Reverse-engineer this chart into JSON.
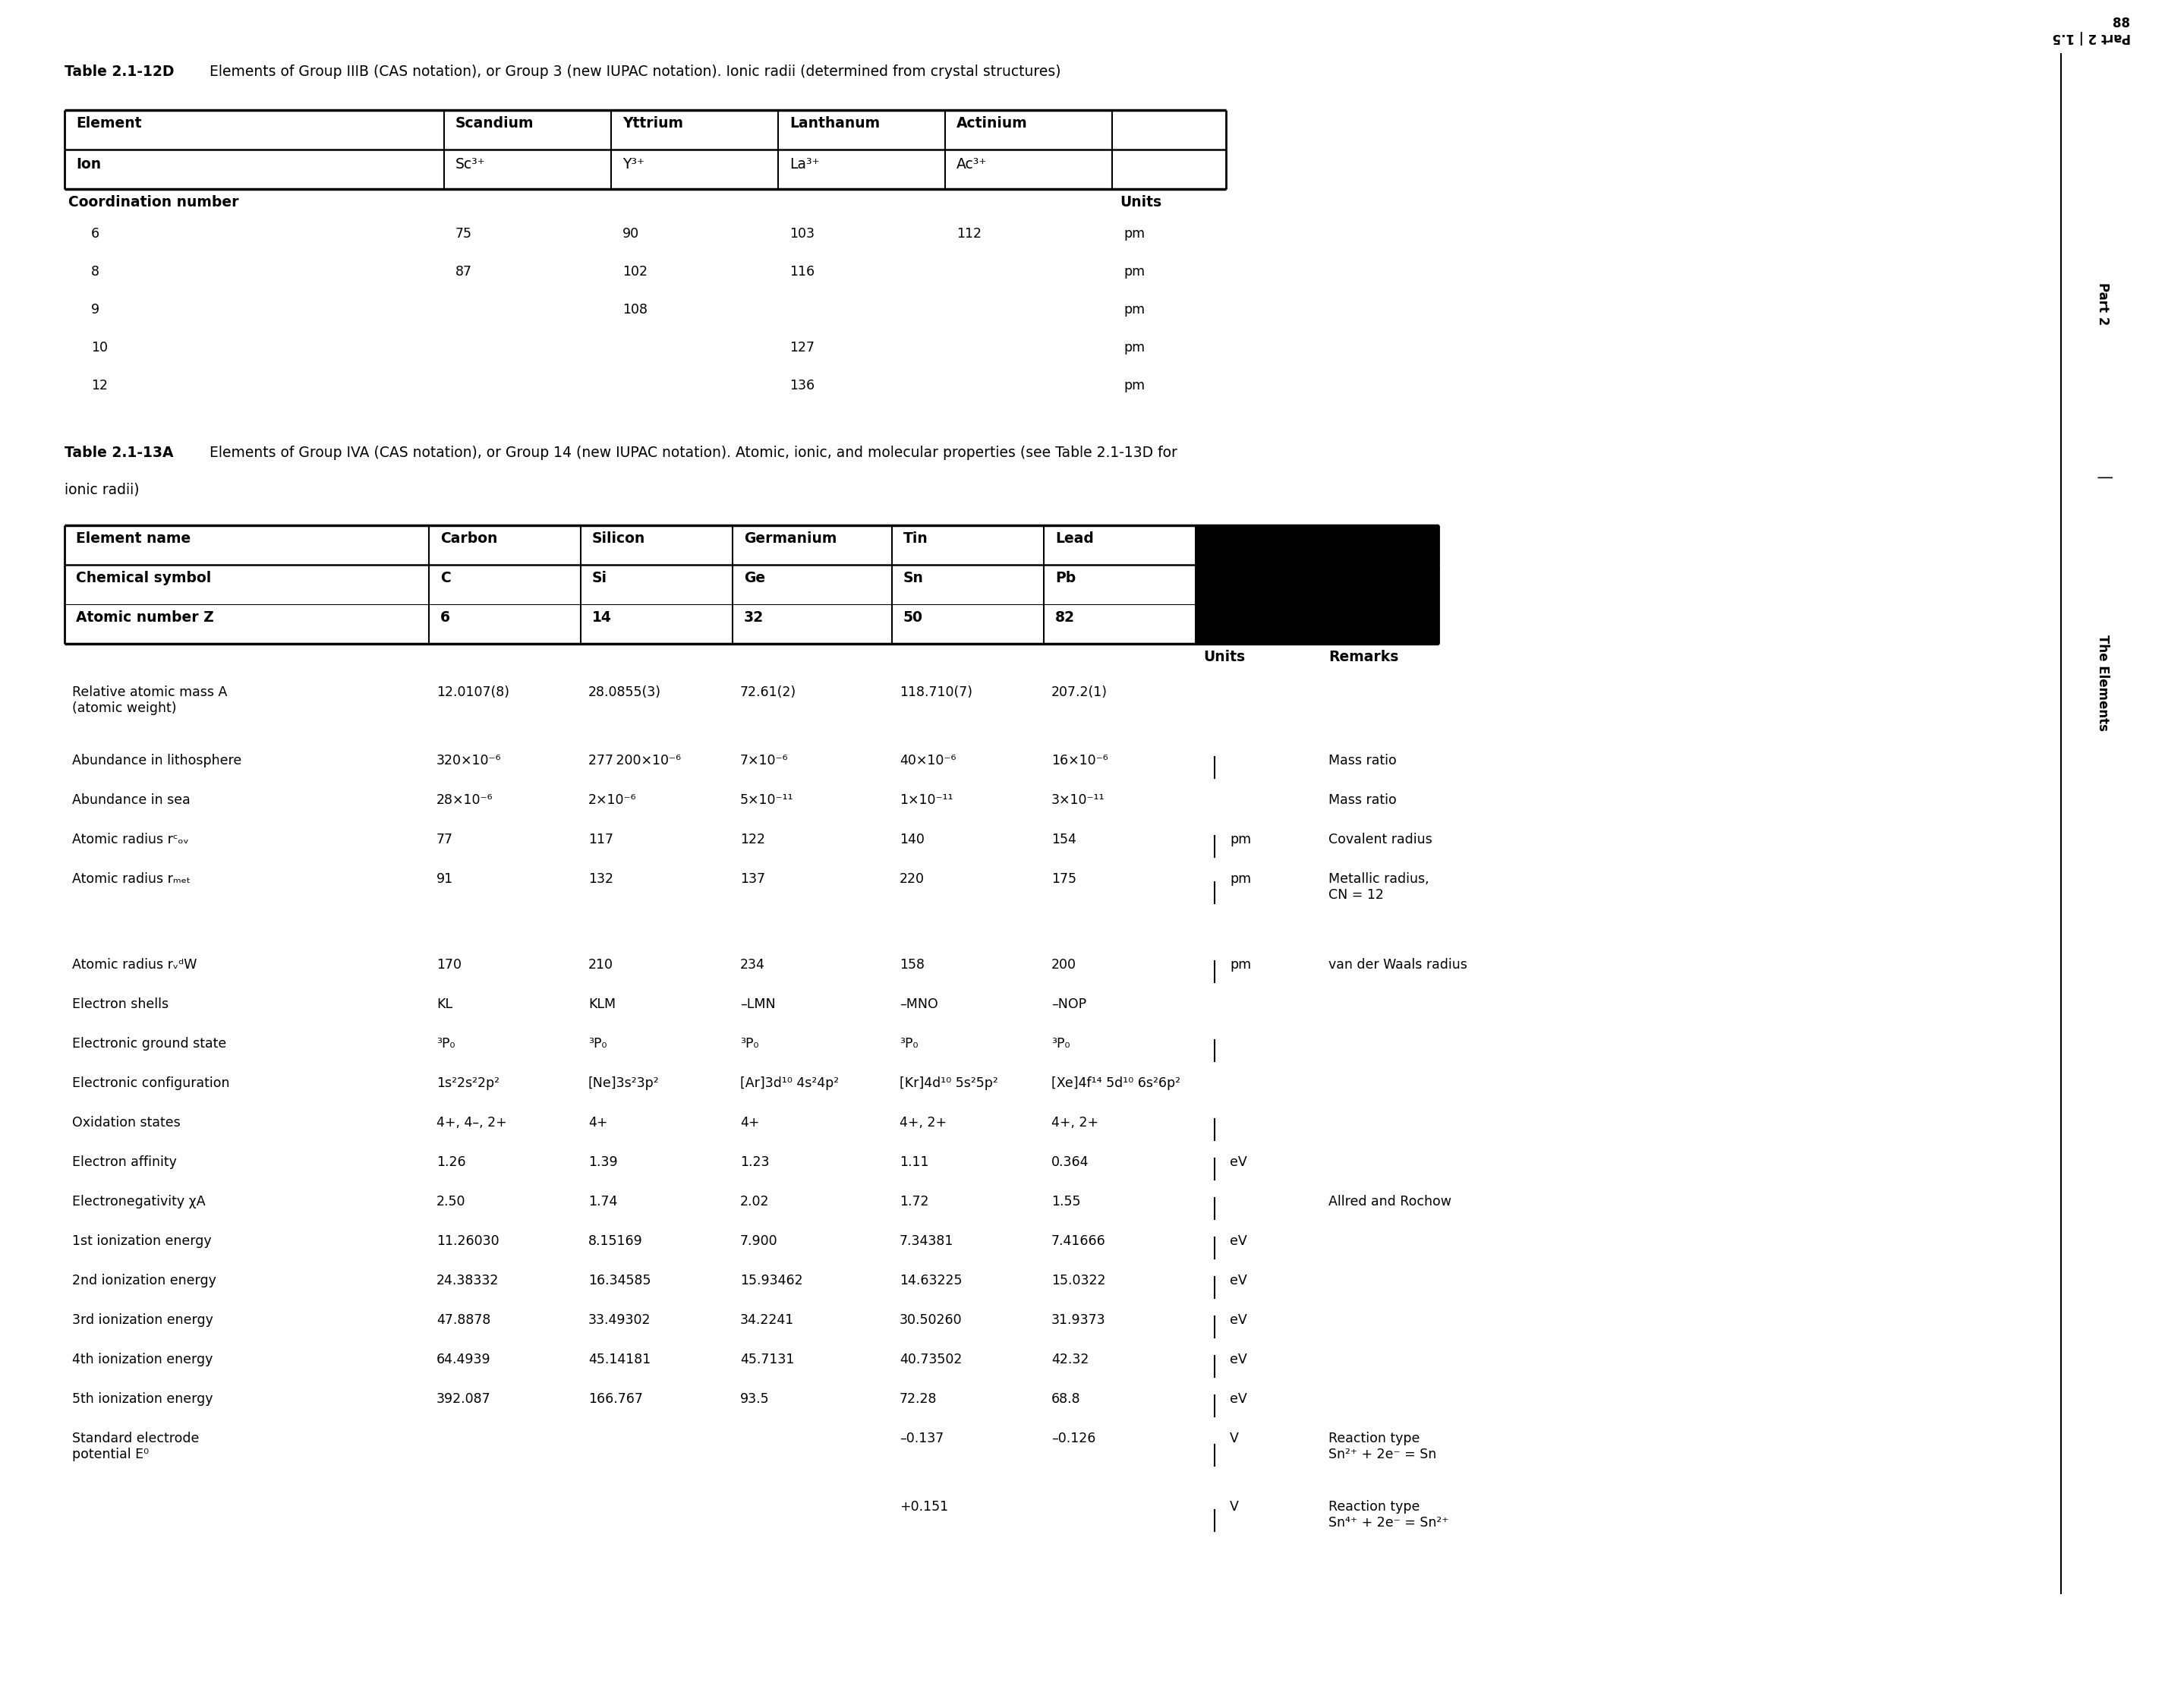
{
  "page_number": "88",
  "part_label": "Part 2 | 1.5",
  "side_label": "Part 2  |  The Elements",
  "table12d_title_bold": "Table 2.1-12D",
  "table12d_title_rest": " Elements of Group IIIB (CAS notation), or Group 3 (new IUPAC notation). Ionic radii (determined from crystal structures)",
  "table12d_headers": [
    "Element",
    "Scandium",
    "Yttrium",
    "Lanthanum",
    "Actinium",
    ""
  ],
  "table12d_ions": [
    "Ion",
    "Sc³⁺",
    "Y³⁺",
    "La³⁺",
    "Ac³⁺",
    ""
  ],
  "table12d_coord_label": "Coordination number",
  "table12d_units_label": "Units",
  "table12d_data": [
    [
      "6",
      "75",
      "90",
      "103",
      "112",
      "pm"
    ],
    [
      "8",
      "87",
      "102",
      "116",
      "",
      "pm"
    ],
    [
      "9",
      "",
      "108",
      "",
      "",
      "pm"
    ],
    [
      "10",
      "",
      "",
      "127",
      "",
      "pm"
    ],
    [
      "12",
      "",
      "",
      "136",
      "",
      "pm"
    ]
  ],
  "table13a_title_bold": "Table 2.1-13A",
  "table13a_title_line1": " Elements of Group IVA (CAS notation), or Group 14 (new IUPAC notation). Atomic, ionic, and molecular properties (see Table 2.1-13D for",
  "table13a_title_line2": "ionic radii)",
  "table13a_headers": [
    "Element name",
    "Carbon",
    "Silicon",
    "Germanium",
    "Tin",
    "Lead"
  ],
  "table13a_symbols": [
    "Chemical symbol",
    "C",
    "Si",
    "Ge",
    "Sn",
    "Pb"
  ],
  "table13a_atomicZ": [
    "Atomic number Z",
    "6",
    "14",
    "32",
    "50",
    "82"
  ],
  "table13a_rows": [
    {
      "prop": "Relative atomic mass A\n(atomic weight)",
      "vals": [
        "12.0107(8)",
        "28.0855(3)",
        "72.61(2)",
        "118.710(7)",
        "207.2(1)"
      ],
      "unit": "",
      "unit_bar": false,
      "remark": "",
      "rh": 0.9
    },
    {
      "prop": "Abundance in lithosphere",
      "vals": [
        "320×10⁻⁶",
        "277 200×10⁻⁶",
        "7×10⁻⁶",
        "40×10⁻⁶",
        "16×10⁻⁶"
      ],
      "unit": "",
      "unit_bar": true,
      "remark": "Mass ratio",
      "rh": 0.52
    },
    {
      "prop": "Abundance in sea",
      "vals": [
        "28×10⁻⁶",
        "2×10⁻⁶",
        "5×10⁻¹¹",
        "1×10⁻¹¹",
        "3×10⁻¹¹"
      ],
      "unit": "",
      "unit_bar": false,
      "remark": "Mass ratio",
      "rh": 0.52
    },
    {
      "prop": "Atomic radius rᶜₒᵥ",
      "vals": [
        "77",
        "117",
        "122",
        "140",
        "154"
      ],
      "unit": "pm",
      "unit_bar": true,
      "remark": "Covalent radius",
      "rh": 0.52
    },
    {
      "prop": "Atomic radius rₘₑₜ",
      "vals": [
        "91",
        "132",
        "137",
        "220",
        "175"
      ],
      "unit": "pm",
      "unit_bar": false,
      "remark": "Metallic radius,\nCN = 12",
      "rh": 0.78
    },
    {
      "prop": "",
      "vals": [
        "",
        "",
        "",
        "",
        ""
      ],
      "unit": "",
      "unit_bar": false,
      "remark": "",
      "rh": 0.35
    },
    {
      "prop": "Atomic radius rᵥᵈW",
      "vals": [
        "170",
        "210",
        "234",
        "158",
        "200"
      ],
      "unit": "pm",
      "unit_bar": true,
      "remark": "van der Waals radius",
      "rh": 0.52
    },
    {
      "prop": "Electron shells",
      "vals": [
        "KL",
        "KLM",
        "–LMN",
        "–MNO",
        "–NOP"
      ],
      "unit": "",
      "unit_bar": false,
      "remark": "",
      "rh": 0.52
    },
    {
      "prop": "Electronic ground state",
      "vals": [
        "³P₀",
        "³P₀",
        "³P₀",
        "³P₀",
        "³P₀"
      ],
      "unit": "",
      "unit_bar": true,
      "remark": "",
      "rh": 0.52
    },
    {
      "prop": "Electronic configuration",
      "vals": [
        "1s²2s²2p²",
        "[Ne]3s²3p²",
        "[Ar]3d¹⁰ 4s²4p²",
        "[Kr]4d¹⁰ 5s²5p²",
        "[Xe]4f¹⁴ 5d¹⁰ 6s²6p²"
      ],
      "unit": "",
      "unit_bar": false,
      "remark": "",
      "rh": 0.52
    },
    {
      "prop": "Oxidation states",
      "vals": [
        "4+, 4–, 2+",
        "4+",
        "4+",
        "4+, 2+",
        "4+, 2+"
      ],
      "unit": "",
      "unit_bar": true,
      "remark": "",
      "rh": 0.52
    },
    {
      "prop": "Electron affinity",
      "vals": [
        "1.26",
        "1.39",
        "1.23",
        "1.11",
        "0.364"
      ],
      "unit": "eV",
      "unit_bar": false,
      "remark": "",
      "rh": 0.52
    },
    {
      "prop": "Electronegativity χA",
      "vals": [
        "2.50",
        "1.74",
        "2.02",
        "1.72",
        "1.55"
      ],
      "unit": "",
      "unit_bar": true,
      "remark": "Allred and Rochow",
      "rh": 0.52
    },
    {
      "prop": "1st ionization energy",
      "vals": [
        "11.26030",
        "8.15169",
        "7.900",
        "7.34381",
        "7.41666"
      ],
      "unit": "eV",
      "unit_bar": false,
      "remark": "",
      "rh": 0.52
    },
    {
      "prop": "2nd ionization energy",
      "vals": [
        "24.38332",
        "16.34585",
        "15.93462",
        "14.63225",
        "15.0322"
      ],
      "unit": "eV",
      "unit_bar": true,
      "remark": "",
      "rh": 0.52
    },
    {
      "prop": "3rd ionization energy",
      "vals": [
        "47.8878",
        "33.49302",
        "34.2241",
        "30.50260",
        "31.9373"
      ],
      "unit": "eV",
      "unit_bar": false,
      "remark": "",
      "rh": 0.52
    },
    {
      "prop": "4th ionization energy",
      "vals": [
        "64.4939",
        "45.14181",
        "45.7131",
        "40.73502",
        "42.32"
      ],
      "unit": "eV",
      "unit_bar": true,
      "remark": "",
      "rh": 0.52
    },
    {
      "prop": "5th ionization energy",
      "vals": [
        "392.087",
        "166.767",
        "93.5",
        "72.28",
        "68.8"
      ],
      "unit": "eV",
      "unit_bar": false,
      "remark": "",
      "rh": 0.52
    },
    {
      "prop": "Standard electrode\npotential E⁰",
      "vals": [
        "",
        "",
        "",
        "–0.137",
        "–0.126"
      ],
      "unit": "V",
      "unit_bar": true,
      "remark": "Reaction type\nSn²⁺ + 2e⁻ = Sn",
      "rh": 0.9
    },
    {
      "prop": "",
      "vals": [
        "",
        "",
        "",
        "+0.151",
        ""
      ],
      "unit": "V",
      "unit_bar": false,
      "remark": "Reaction type\nSn⁴⁺ + 2e⁻ = Sn²⁺",
      "rh": 0.78
    }
  ],
  "background_color": "#ffffff",
  "text_color": "#000000"
}
